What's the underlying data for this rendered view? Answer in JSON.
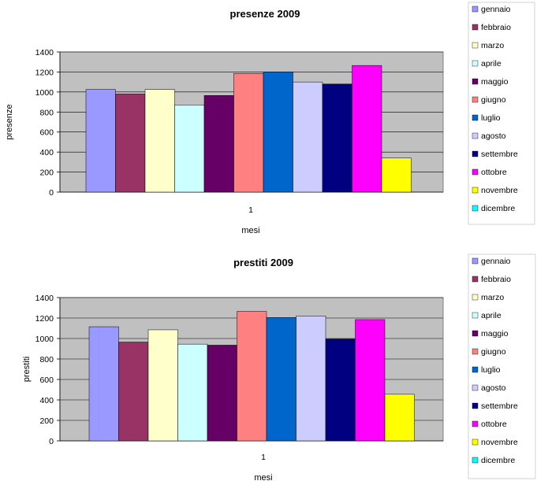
{
  "chart_data": [
    {
      "type": "bar",
      "title": "presenze 2009",
      "xlabel": "mesi",
      "ylabel": "presenze",
      "categories": [
        "1"
      ],
      "ylim": [
        0,
        1400
      ],
      "yticks": [
        0,
        200,
        400,
        600,
        800,
        1000,
        1200,
        1400
      ],
      "grid": true,
      "legend_position": "right",
      "series": [
        {
          "name": "gennaio",
          "values": [
            1025
          ],
          "color": "#9999ff"
        },
        {
          "name": "febbraio",
          "values": [
            980
          ],
          "color": "#993366"
        },
        {
          "name": "marzo",
          "values": [
            1025
          ],
          "color": "#ffffcc"
        },
        {
          "name": "aprile",
          "values": [
            870
          ],
          "color": "#ccffff"
        },
        {
          "name": "maggio",
          "values": [
            965
          ],
          "color": "#660066"
        },
        {
          "name": "giugno",
          "values": [
            1185
          ],
          "color": "#ff8080"
        },
        {
          "name": "luglio",
          "values": [
            1200
          ],
          "color": "#0066cc"
        },
        {
          "name": "agosto",
          "values": [
            1100
          ],
          "color": "#ccccff"
        },
        {
          "name": "settembre",
          "values": [
            1080
          ],
          "color": "#000080"
        },
        {
          "name": "ottobre",
          "values": [
            1265
          ],
          "color": "#ff00ff"
        },
        {
          "name": "novembre",
          "values": [
            340
          ],
          "color": "#ffff00"
        },
        {
          "name": "dicembre",
          "values": [
            0
          ],
          "color": "#00ffff"
        }
      ]
    },
    {
      "type": "bar",
      "title": "prestiti 2009",
      "xlabel": "mesi",
      "ylabel": "prestiti",
      "categories": [
        "1"
      ],
      "ylim": [
        0,
        1400
      ],
      "yticks": [
        0,
        200,
        400,
        600,
        800,
        1000,
        1200,
        1400
      ],
      "grid": true,
      "legend_position": "right",
      "series": [
        {
          "name": "gennaio",
          "values": [
            1115
          ],
          "color": "#9999ff"
        },
        {
          "name": "febbraio",
          "values": [
            965
          ],
          "color": "#993366"
        },
        {
          "name": "marzo",
          "values": [
            1085
          ],
          "color": "#ffffcc"
        },
        {
          "name": "aprile",
          "values": [
            945
          ],
          "color": "#ccffff"
        },
        {
          "name": "maggio",
          "values": [
            935
          ],
          "color": "#660066"
        },
        {
          "name": "giugno",
          "values": [
            1265
          ],
          "color": "#ff8080"
        },
        {
          "name": "luglio",
          "values": [
            1205
          ],
          "color": "#0066cc"
        },
        {
          "name": "agosto",
          "values": [
            1220
          ],
          "color": "#ccccff"
        },
        {
          "name": "settembre",
          "values": [
            995
          ],
          "color": "#000080"
        },
        {
          "name": "ottobre",
          "values": [
            1185
          ],
          "color": "#ff00ff"
        },
        {
          "name": "novembre",
          "values": [
            455
          ],
          "color": "#ffff00"
        },
        {
          "name": "dicembre",
          "values": [
            0
          ],
          "color": "#00ffff"
        }
      ]
    }
  ],
  "colors": {
    "plot_area": "#c0c0c0",
    "gridline": "#000000"
  }
}
